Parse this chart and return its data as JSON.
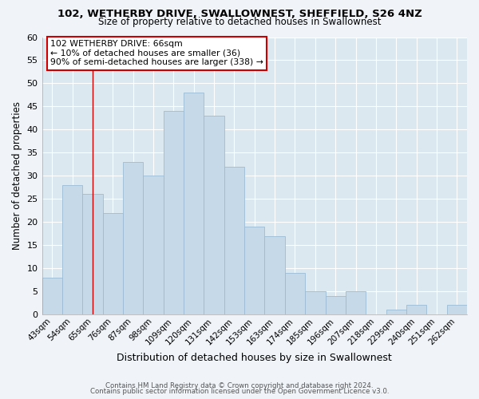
{
  "title1": "102, WETHERBY DRIVE, SWALLOWNEST, SHEFFIELD, S26 4NZ",
  "title2": "Size of property relative to detached houses in Swallownest",
  "xlabel": "Distribution of detached houses by size in Swallownest",
  "ylabel": "Number of detached properties",
  "bar_labels": [
    "43sqm",
    "54sqm",
    "65sqm",
    "76sqm",
    "87sqm",
    "98sqm",
    "109sqm",
    "120sqm",
    "131sqm",
    "142sqm",
    "153sqm",
    "163sqm",
    "174sqm",
    "185sqm",
    "196sqm",
    "207sqm",
    "218sqm",
    "229sqm",
    "240sqm",
    "251sqm",
    "262sqm"
  ],
  "bar_values": [
    8,
    28,
    26,
    22,
    33,
    30,
    44,
    48,
    43,
    32,
    19,
    17,
    9,
    5,
    4,
    5,
    0,
    1,
    2,
    0,
    2
  ],
  "bar_color": "#c6d9e8",
  "bar_edge_color": "#9bbbd4",
  "ylim": [
    0,
    60
  ],
  "yticks": [
    0,
    5,
    10,
    15,
    20,
    25,
    30,
    35,
    40,
    45,
    50,
    55,
    60
  ],
  "vline_x_index": 2,
  "vline_color": "#cc0000",
  "annotation_title": "102 WETHERBY DRIVE: 66sqm",
  "annotation_line1": "← 10% of detached houses are smaller (36)",
  "annotation_line2": "90% of semi-detached houses are larger (338) →",
  "annotation_box_color": "#ffffff",
  "annotation_box_edge": "#cc0000",
  "footer1": "Contains HM Land Registry data © Crown copyright and database right 2024.",
  "footer2": "Contains public sector information licensed under the Open Government Licence v3.0.",
  "bg_color": "#f0f4f8",
  "plot_bg_color": "#dce8f0",
  "grid_color": "#ffffff"
}
